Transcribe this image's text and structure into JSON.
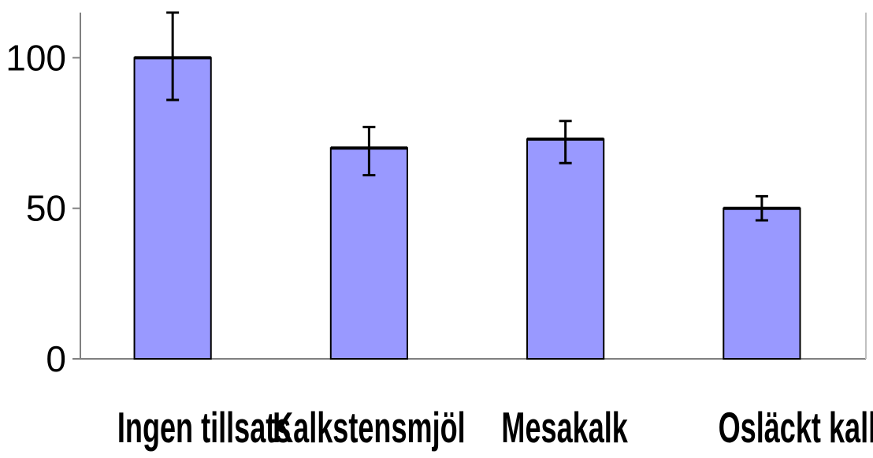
{
  "chart_data": {
    "type": "bar",
    "title": "",
    "xlabel": "",
    "ylabel": "",
    "categories": [
      "Ingen tillsats",
      "Kalkstensmjöl",
      "Mesakalk",
      "Osläckt kalk"
    ],
    "values": [
      100,
      70,
      73,
      50
    ],
    "error_low": [
      86,
      61,
      65,
      46
    ],
    "error_high": [
      115,
      77,
      79,
      54
    ],
    "ylim": [
      0,
      115
    ],
    "yticks": [
      0,
      50,
      100
    ],
    "ytick_labels": [
      "0",
      "50",
      "100"
    ],
    "grid": false,
    "legend": "none",
    "colors": {
      "bar_fill": "#9999ff",
      "bar_stroke": "#000000",
      "axis": "#808080",
      "error_bar": "#000000"
    }
  }
}
